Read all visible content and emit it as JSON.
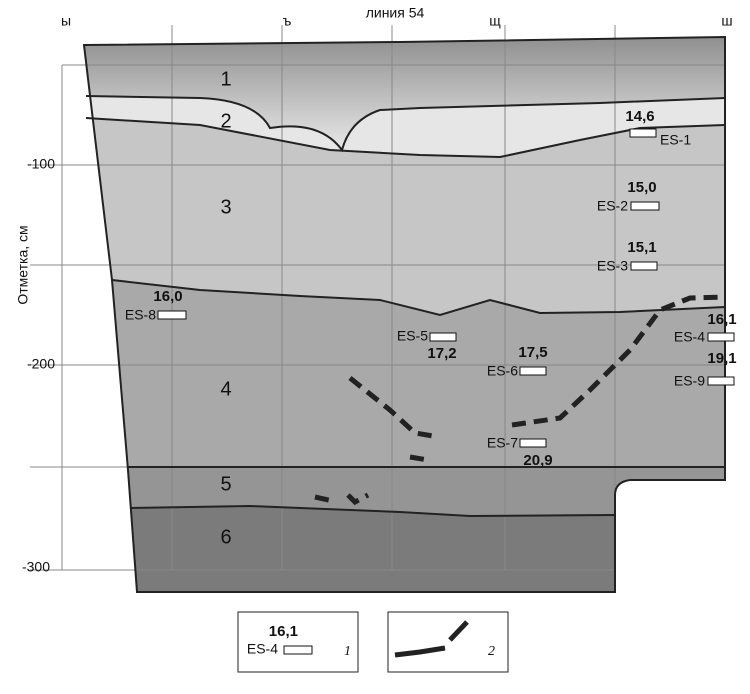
{
  "header": {
    "title": "линия 54"
  },
  "columns": [
    "ы",
    "ъ",
    "щ",
    "ш"
  ],
  "axis": {
    "label": "Отметка, см",
    "ticks": [
      "-100",
      "-200",
      "-300"
    ]
  },
  "layers": [
    "1",
    "2",
    "3",
    "4",
    "5",
    "6"
  ],
  "samples": [
    {
      "id": "ES-1",
      "value": "14,6"
    },
    {
      "id": "ES-2",
      "value": "15,0"
    },
    {
      "id": "ES-3",
      "value": "15,1"
    },
    {
      "id": "ES-8",
      "value": "16,0"
    },
    {
      "id": "ES-5",
      "value": "17,2"
    },
    {
      "id": "ES-6",
      "value": "17,5"
    },
    {
      "id": "ES-7",
      "value": "20,9"
    },
    {
      "id": "ES-4",
      "value": "16,1"
    },
    {
      "id": "ES-9",
      "value": "19,1"
    }
  ],
  "legend": [
    {
      "value": "16,1",
      "id": "ES-4",
      "caption": "1"
    },
    {
      "caption": "2"
    }
  ]
}
